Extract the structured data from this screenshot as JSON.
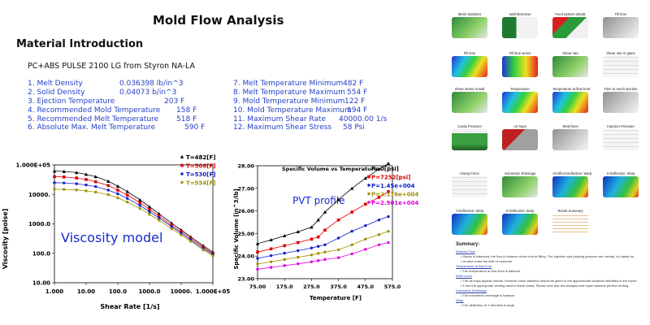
{
  "document": {
    "title": "Mold Flow Analysis",
    "section": "Material Introduction",
    "material": "PC+ABS PULSE 2100 LG from Styron NA-LA",
    "properties_left": [
      {
        "label": "1. Melt Density",
        "value": "0.036398 lb/in^3"
      },
      {
        "label": "2. Solid Density",
        "value": "0.04073 b/in^3"
      },
      {
        "label": "3. Ejection Temperature",
        "value": "203  F"
      },
      {
        "label": "4. Recommended Mold Temperature",
        "value": "158  F"
      },
      {
        "label": "5. Recommended Melt Temperature",
        "value": "518  F"
      },
      {
        "label": "6. Absolute Max. Melt Temperature",
        "value": "590  F"
      }
    ],
    "properties_right": [
      {
        "label": "7. Melt  Temperature Minimum",
        "value": "482 F"
      },
      {
        "label": "8. Melt  Temperature Maximum",
        "value": "554 F"
      },
      {
        "label": "9. Mold  Temperature Minimum",
        "value": "122  F"
      },
      {
        "label": "10. Mold  Temperature Maximum",
        "value": "194  F"
      },
      {
        "label": "11. Maximum Shear Rate",
        "value": "40000.00  1/s"
      },
      {
        "label": "12. Maximum Shear Stress",
        "value": "58  Psi"
      }
    ]
  },
  "chart_data": [
    {
      "type": "line",
      "annotation": "Viscosity model",
      "xlabel": "Shear Rate [1/s]",
      "ylabel": "Viscosity [poise]",
      "xscale": "log",
      "yscale": "log",
      "xlim": [
        1,
        100000
      ],
      "ylim": [
        10,
        100000
      ],
      "x_ticks": [
        "1.000",
        "10.00",
        "100.0",
        "1000.0",
        "10000.",
        "1.000E+05"
      ],
      "y_ticks": [
        "10.00",
        "100.0",
        "1000.0",
        "10000.",
        "1.000E+05"
      ],
      "legend_position": "top-right",
      "x": [
        1,
        2,
        5,
        10,
        20,
        50,
        100,
        200,
        500,
        1000,
        2000,
        5000,
        10000,
        20000,
        50000,
        100000
      ],
      "series": [
        {
          "name": "T=482[F]",
          "color": "#000000",
          "marker": "triangle",
          "values": [
            62000,
            60000,
            55000,
            48000,
            40000,
            28000,
            19000,
            12500,
            6500,
            3800,
            2200,
            1050,
            620,
            360,
            180,
            110
          ]
        },
        {
          "name": "T=506[F]",
          "color": "#e00000",
          "marker": "square",
          "values": [
            40000,
            39000,
            36000,
            32000,
            27000,
            20000,
            14000,
            9500,
            5200,
            3100,
            1850,
            900,
            540,
            320,
            160,
            100
          ]
        },
        {
          "name": "T=530[F]",
          "color": "#1020c8",
          "marker": "circle",
          "values": [
            25000,
            24500,
            23000,
            21000,
            18500,
            14000,
            10500,
            7300,
            4200,
            2600,
            1600,
            800,
            480,
            285,
            145,
            92
          ]
        },
        {
          "name": "T=554[F]",
          "color": "#a09000",
          "marker": "circle",
          "values": [
            15000,
            14800,
            14200,
            13200,
            12000,
            9800,
            7600,
            5500,
            3300,
            2100,
            1330,
            680,
            420,
            255,
            130,
            82
          ]
        }
      ]
    },
    {
      "type": "line",
      "title": "Specific Volume vs Temperature",
      "annotation": "PVT profile",
      "xlabel": "Temperature [F]",
      "ylabel": "Specific Volume [in^3/lb]",
      "xlim": [
        75,
        575
      ],
      "ylim": [
        23,
        28
      ],
      "x_ticks": [
        "75.00",
        "175.0",
        "275.0",
        "375.0",
        "475.0",
        "575.0"
      ],
      "y_ticks": [
        "23.00",
        "24.00",
        "25.00",
        "26.00",
        "27.00",
        "28.00"
      ],
      "legend_position": "top-right",
      "x": [
        75,
        125,
        175,
        225,
        275,
        300,
        325,
        375,
        425,
        475,
        525,
        560
      ],
      "series": [
        {
          "name": "P=0[psi]",
          "color": "#000000",
          "marker": "triangle",
          "values": [
            24.55,
            24.72,
            24.9,
            25.08,
            25.28,
            25.6,
            25.95,
            26.5,
            27.0,
            27.45,
            27.85,
            28.1
          ]
        },
        {
          "name": "P=7252[psi]",
          "color": "#e00000",
          "marker": "square",
          "values": [
            24.18,
            24.32,
            24.46,
            24.6,
            24.75,
            24.85,
            25.15,
            25.6,
            25.95,
            26.3,
            26.6,
            26.85
          ]
        },
        {
          "name": "P=1.45e+004",
          "color": "#1020c8",
          "marker": "circle",
          "values": [
            23.9,
            24.02,
            24.13,
            24.24,
            24.36,
            24.43,
            24.5,
            24.8,
            25.1,
            25.35,
            25.6,
            25.75
          ]
        },
        {
          "name": "P=2.176e+004",
          "color": "#a09000",
          "marker": "circle",
          "values": [
            23.65,
            23.75,
            23.85,
            23.95,
            24.05,
            24.12,
            24.18,
            24.28,
            24.5,
            24.75,
            24.95,
            25.1
          ]
        },
        {
          "name": "P=2.901e+004",
          "color": "#e000e0",
          "marker": "circle",
          "values": [
            23.42,
            23.5,
            23.58,
            23.66,
            23.75,
            23.8,
            23.85,
            23.93,
            24.1,
            24.3,
            24.5,
            24.6
          ]
        }
      ]
    }
  ],
  "report_panel": {
    "thumbnails": [
      {
        "caption": "Mesh Statistics",
        "style": "green-part"
      },
      {
        "caption": "Wall thickness",
        "style": "green-table"
      },
      {
        "caption": "Feed system details",
        "style": "red-green"
      },
      {
        "caption": "Fill time",
        "style": "gray-part"
      },
      {
        "caption": "Fill time",
        "style": "rainbow"
      },
      {
        "caption": "Fill time series",
        "style": "rainbow-small"
      },
      {
        "caption": "Shear rate",
        "style": "green-part"
      },
      {
        "caption": "Shear rate in gates",
        "style": "gray-chart"
      },
      {
        "caption": "Shear stress at wall",
        "style": "green-part"
      },
      {
        "caption": "Temperature",
        "style": "rainbow"
      },
      {
        "caption": "Temperature at flow front",
        "style": "rainbow"
      },
      {
        "caption": "Time to reach ejection",
        "style": "gray-part"
      },
      {
        "caption": "Cavity Pressure",
        "style": "green-chart"
      },
      {
        "caption": "Air traps",
        "style": "red-gray"
      },
      {
        "caption": "Weld lines",
        "style": "gray-part"
      },
      {
        "caption": "Injection Pressure",
        "style": "gray-chart"
      },
      {
        "caption": "Clamp Force",
        "style": "gray-chart"
      },
      {
        "caption": "Volumetric shrinkage",
        "style": "green-part"
      },
      {
        "caption": "All effect-Deflection: Warp",
        "style": "rainbow-blue"
      },
      {
        "caption": "X-Deflection: Warp",
        "style": "rainbow-blue"
      },
      {
        "caption": "Y-Deflection: Warp",
        "style": "rainbow-blue"
      },
      {
        "caption": "Z-Deflection: Warp",
        "style": "rainbow-blue"
      },
      {
        "caption": "Result Summary",
        "style": "table"
      }
    ],
    "summary_title": "Summary:",
    "summary_lines": [
      "Material Flow",
      "Status is balanced, the flow is balance at two end of filling. The injection and packing  pressure are normal, no clamp for",
      "as also under the limit of customer.",
      "Temperature at flow front",
      "The temperature at flow front is balance.",
      "Weld Lines",
      "The air traps appear normal. However close attention should be given to the approximate locations identified in the report",
      "if and the appropriate venting used in these areas. Please note that this analysis and report assume perfect venting.",
      "Volumetric Shrinkage",
      "The volumetric shrinkage is balance.",
      "Warp",
      "The deflection of X direction is large."
    ],
    "colors": {
      "link": "#2a3fb0",
      "text": "#333333"
    }
  }
}
